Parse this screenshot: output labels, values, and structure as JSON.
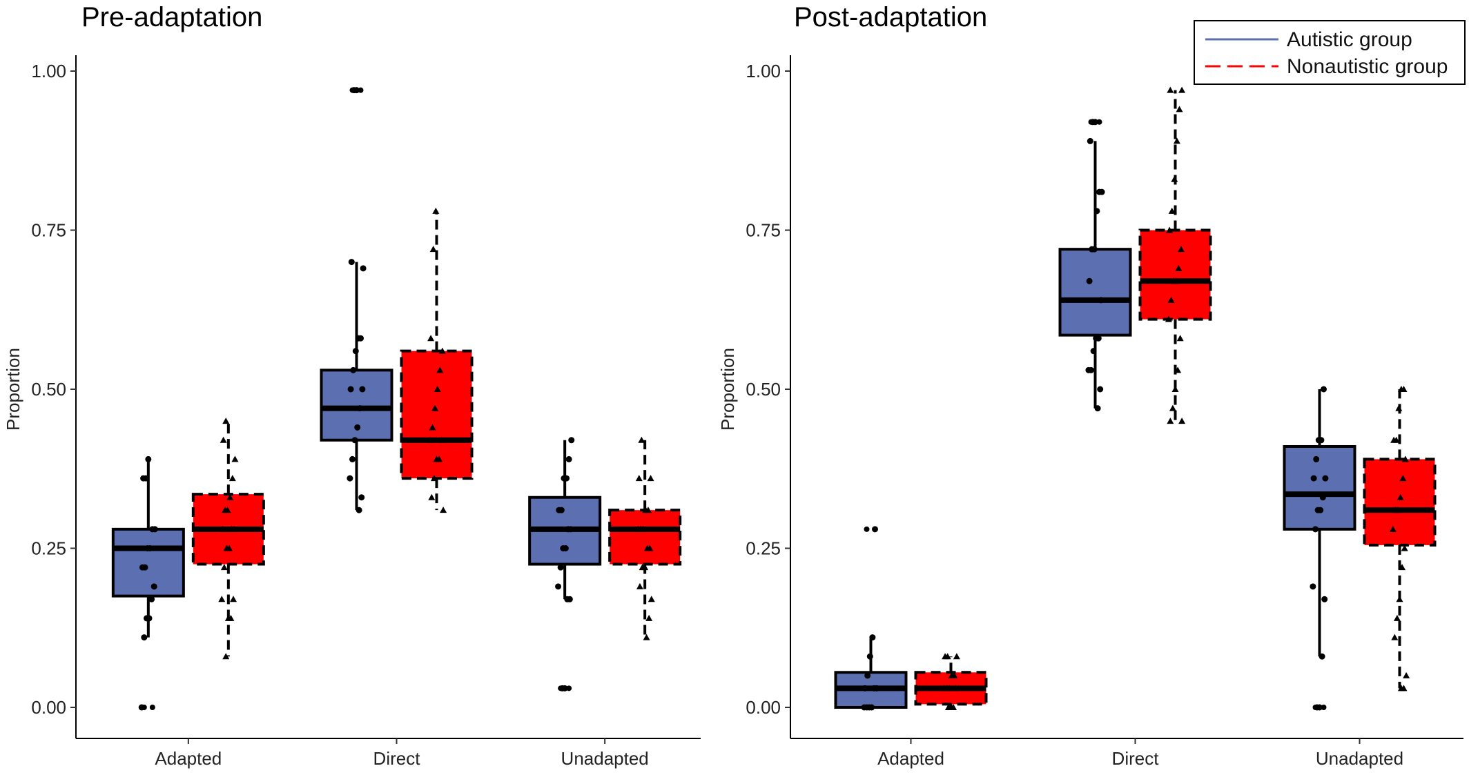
{
  "legend": {
    "position": "top-right",
    "items": [
      {
        "label": "Autistic group",
        "color": "#5b6fb1",
        "line": "solid"
      },
      {
        "label": "Nonautistic group",
        "color": "#ff0000",
        "line": "dashed"
      }
    ]
  },
  "chart_data": [
    {
      "type": "box",
      "title": "Pre-adaptation",
      "ylabel": "Proportion",
      "xlabel": "",
      "ylim": [
        0,
        1
      ],
      "yticks": [
        "0.00",
        "0.25",
        "0.50",
        "0.75",
        "1.00"
      ],
      "categories": [
        "Adapted",
        "Direct",
        "Unadapted"
      ],
      "grid": false,
      "series": [
        {
          "name": "Autistic group",
          "color": "#5b6fb1",
          "boxes": [
            {
              "min": 0.11,
              "q1": 0.175,
              "median": 0.25,
              "q3": 0.28,
              "max": 0.39,
              "outliers": [
                0.0
              ]
            },
            {
              "min": 0.31,
              "q1": 0.42,
              "median": 0.47,
              "q3": 0.53,
              "max": 0.7,
              "outliers": [
                0.97
              ]
            },
            {
              "min": 0.17,
              "q1": 0.225,
              "median": 0.28,
              "q3": 0.33,
              "max": 0.42,
              "outliers": [
                0.03
              ]
            }
          ],
          "points": [
            [
              0.0,
              0.11,
              0.14,
              0.14,
              0.17,
              0.19,
              0.22,
              0.22,
              0.25,
              0.25,
              0.28,
              0.28,
              0.36,
              0.36,
              0.39
            ],
            [
              0.31,
              0.33,
              0.36,
              0.39,
              0.42,
              0.44,
              0.47,
              0.5,
              0.5,
              0.53,
              0.56,
              0.58,
              0.58,
              0.69,
              0.7,
              0.97,
              0.97
            ],
            [
              0.03,
              0.03,
              0.17,
              0.17,
              0.19,
              0.22,
              0.25,
              0.25,
              0.28,
              0.28,
              0.31,
              0.31,
              0.36,
              0.36,
              0.39,
              0.42
            ]
          ]
        },
        {
          "name": "Nonautistic group",
          "color": "#ff0000",
          "boxes": [
            {
              "min": 0.08,
              "q1": 0.225,
              "median": 0.28,
              "q3": 0.335,
              "max": 0.45,
              "outliers": []
            },
            {
              "min": 0.31,
              "q1": 0.36,
              "median": 0.42,
              "q3": 0.56,
              "max": 0.78,
              "outliers": []
            },
            {
              "min": 0.11,
              "q1": 0.225,
              "median": 0.28,
              "q3": 0.31,
              "max": 0.42,
              "outliers": []
            }
          ],
          "points": [
            [
              0.08,
              0.14,
              0.14,
              0.17,
              0.17,
              0.22,
              0.25,
              0.25,
              0.28,
              0.28,
              0.28,
              0.31,
              0.31,
              0.33,
              0.36,
              0.39,
              0.42,
              0.45
            ],
            [
              0.31,
              0.33,
              0.36,
              0.39,
              0.39,
              0.42,
              0.42,
              0.44,
              0.47,
              0.5,
              0.53,
              0.56,
              0.58,
              0.72,
              0.78
            ],
            [
              0.11,
              0.14,
              0.17,
              0.19,
              0.22,
              0.22,
              0.25,
              0.25,
              0.28,
              0.28,
              0.28,
              0.31,
              0.31,
              0.36,
              0.36,
              0.42
            ]
          ]
        }
      ]
    },
    {
      "type": "box",
      "title": "Post-adaptation",
      "ylabel": "Proportion",
      "xlabel": "",
      "ylim": [
        0,
        1
      ],
      "yticks": [
        "0.00",
        "0.25",
        "0.50",
        "0.75",
        "1.00"
      ],
      "categories": [
        "Adapted",
        "Direct",
        "Unadapted"
      ],
      "grid": false,
      "series": [
        {
          "name": "Autistic group",
          "color": "#5b6fb1",
          "boxes": [
            {
              "min": 0.0,
              "q1": 0.0,
              "median": 0.03,
              "q3": 0.055,
              "max": 0.11,
              "outliers": [
                0.28
              ]
            },
            {
              "min": 0.47,
              "q1": 0.585,
              "median": 0.64,
              "q3": 0.72,
              "max": 0.89,
              "outliers": [
                0.92
              ]
            },
            {
              "min": 0.08,
              "q1": 0.28,
              "median": 0.335,
              "q3": 0.41,
              "max": 0.5,
              "outliers": [
                0.0
              ]
            }
          ],
          "points": [
            [
              0.0,
              0.0,
              0.0,
              0.0,
              0.03,
              0.03,
              0.03,
              0.05,
              0.08,
              0.11,
              0.28
            ],
            [
              0.47,
              0.5,
              0.53,
              0.53,
              0.56,
              0.58,
              0.58,
              0.64,
              0.67,
              0.72,
              0.72,
              0.78,
              0.81,
              0.81,
              0.89,
              0.92,
              0.92
            ],
            [
              0.0,
              0.0,
              0.08,
              0.17,
              0.19,
              0.28,
              0.31,
              0.31,
              0.33,
              0.36,
              0.36,
              0.39,
              0.42,
              0.42,
              0.5
            ]
          ]
        },
        {
          "name": "Nonautistic group",
          "color": "#ff0000",
          "boxes": [
            {
              "min": 0.0,
              "q1": 0.005,
              "median": 0.03,
              "q3": 0.055,
              "max": 0.08,
              "outliers": []
            },
            {
              "min": 0.45,
              "q1": 0.61,
              "median": 0.67,
              "q3": 0.75,
              "max": 0.97,
              "outliers": []
            },
            {
              "min": 0.03,
              "q1": 0.255,
              "median": 0.31,
              "q3": 0.39,
              "max": 0.5,
              "outliers": []
            }
          ],
          "points": [
            [
              0.0,
              0.0,
              0.0,
              0.03,
              0.03,
              0.03,
              0.03,
              0.05,
              0.05,
              0.08,
              0.08,
              0.08
            ],
            [
              0.45,
              0.45,
              0.47,
              0.5,
              0.53,
              0.58,
              0.61,
              0.64,
              0.67,
              0.67,
              0.69,
              0.72,
              0.75,
              0.78,
              0.83,
              0.89,
              0.94,
              0.97,
              0.97
            ],
            [
              0.03,
              0.03,
              0.05,
              0.11,
              0.14,
              0.17,
              0.22,
              0.25,
              0.28,
              0.31,
              0.31,
              0.33,
              0.36,
              0.39,
              0.42,
              0.42,
              0.47,
              0.5,
              0.5
            ]
          ]
        }
      ]
    }
  ]
}
